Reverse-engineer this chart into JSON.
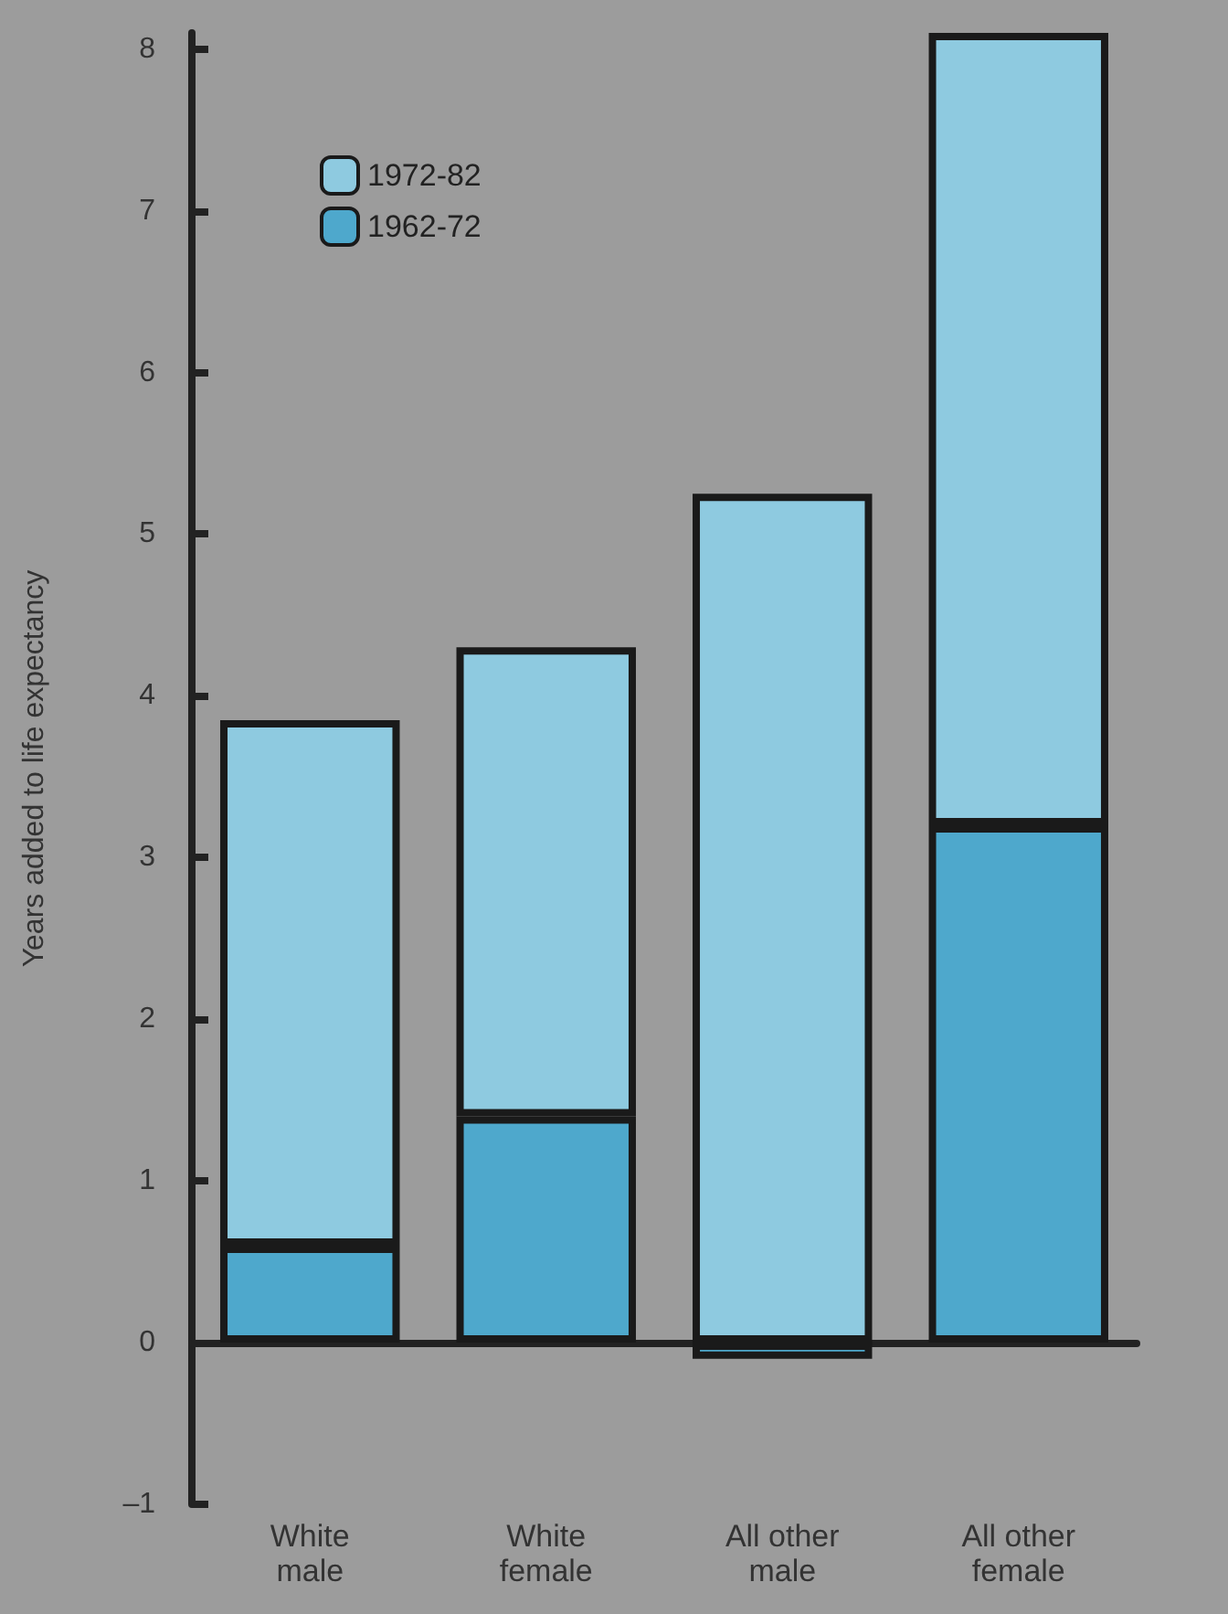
{
  "chart_data": {
    "type": "bar",
    "stacked": true,
    "ylabel": "Years added to life expectancy",
    "categories": [
      "White\nmale",
      "White\nfemale",
      "All other\nmale",
      "All other\nfemale"
    ],
    "series": [
      {
        "name": "1962-72",
        "color": "#4ea8cc",
        "values": [
          0.6,
          1.4,
          -0.1,
          3.2
        ]
      },
      {
        "name": "1972-82",
        "color": "#8ecae0",
        "values": [
          3.25,
          2.9,
          5.25,
          4.9
        ]
      }
    ],
    "ylim": [
      -1,
      8.1
    ],
    "yticks": [
      {
        "value": -1,
        "label": "–1"
      },
      0,
      1,
      2,
      3,
      4,
      5,
      6,
      7,
      8
    ],
    "legend": "top left"
  }
}
